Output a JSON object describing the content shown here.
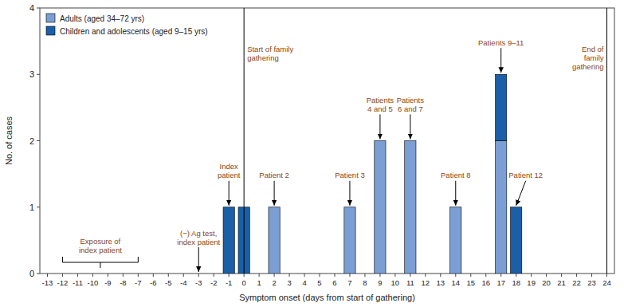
{
  "chart_data": {
    "type": "bar",
    "stacked": true,
    "x": [
      -1,
      0,
      2,
      7,
      9,
      11,
      14,
      17,
      18
    ],
    "series": [
      {
        "name": "Adults (aged 34–72 yrs)",
        "color": "#7b9fd4",
        "values": [
          null,
          null,
          1,
          1,
          2,
          2,
          1,
          2,
          null
        ]
      },
      {
        "name": "Children and adolescents (aged 9–15 yrs)",
        "color": "#1a5fa8",
        "values": [
          1,
          1,
          null,
          null,
          null,
          null,
          null,
          1,
          1
        ]
      }
    ],
    "xlabel": "Symptom onset (days from start of gathering)",
    "ylabel": "No. of cases",
    "xlim": [
      -13.5,
      24.5
    ],
    "xticks": [
      -13,
      -12,
      -11,
      -10,
      -9,
      -8,
      -7,
      -6,
      -5,
      -4,
      -3,
      -2,
      -1,
      0,
      1,
      2,
      3,
      4,
      5,
      6,
      7,
      8,
      9,
      10,
      11,
      12,
      13,
      14,
      15,
      16,
      17,
      18,
      19,
      20,
      21,
      22,
      23,
      24
    ],
    "ylim": [
      0,
      4
    ],
    "yticks": [
      0,
      1,
      2,
      3,
      4
    ],
    "legend": "upper left",
    "grid": false,
    "annotations": [
      {
        "type": "bracket",
        "text": "Exposure of\nindex patient",
        "x0": -12,
        "x1": -7,
        "color": "#8B4513"
      },
      {
        "type": "arrow",
        "text": "(−) Ag test,\nindex patient",
        "x": -3,
        "y": 0,
        "color": "#8B4513"
      },
      {
        "type": "arrow",
        "text": "Index\npatient",
        "x": -1,
        "y": 1,
        "color": "#8B4513"
      },
      {
        "type": "vline",
        "text": "Start of family\ngathering",
        "x": 0,
        "color": "#8B4513"
      },
      {
        "type": "arrow",
        "text": "Patient 2",
        "x": 2,
        "y": 1,
        "color": "#8B4513"
      },
      {
        "type": "arrow",
        "text": "Patient 3",
        "x": 7,
        "y": 1,
        "color": "#8B4513"
      },
      {
        "type": "arrow",
        "text": "Patients\n4 and 5",
        "x": 9,
        "y": 2,
        "color": "#8B4513"
      },
      {
        "type": "arrow",
        "text": "Patients\n6 and 7",
        "x": 11,
        "y": 2,
        "color": "#8B4513"
      },
      {
        "type": "arrow",
        "text": "Patient 8",
        "x": 14,
        "y": 1,
        "color": "#8B4513"
      },
      {
        "type": "arrow",
        "text": "Patients 9–11",
        "x": 17,
        "y": 3,
        "color": "#8B4513"
      },
      {
        "type": "arrow",
        "text": "Patient 12",
        "x": 18,
        "y": 1,
        "color": "#8B4513"
      },
      {
        "type": "vline",
        "text": "End of\nfamily\ngathering",
        "x": 24,
        "color": "#8B4513"
      }
    ]
  }
}
